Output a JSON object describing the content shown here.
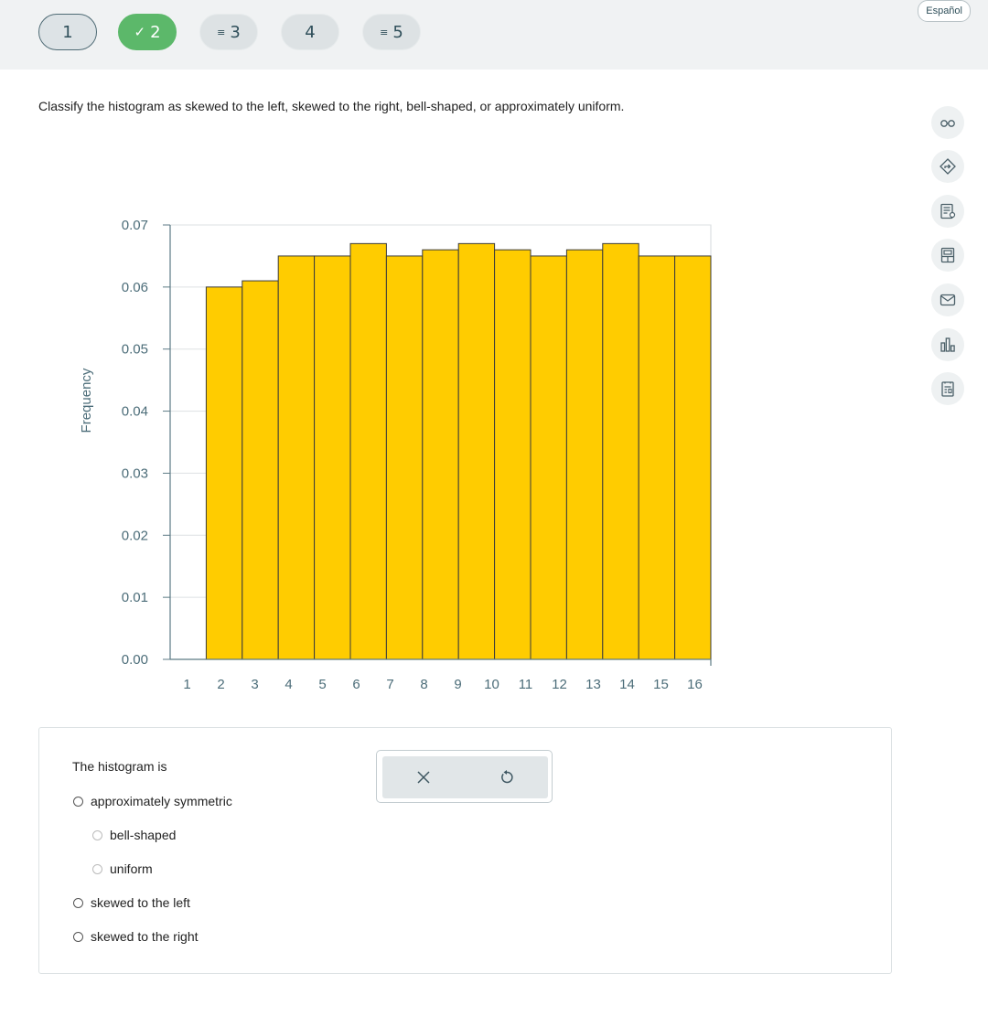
{
  "nav": {
    "tabs": [
      {
        "number": "1",
        "state": "current"
      },
      {
        "number": "2",
        "state": "done"
      },
      {
        "number": "3",
        "state": "note"
      },
      {
        "number": "4",
        "state": "plain"
      },
      {
        "number": "5",
        "state": "note"
      }
    ],
    "language_label": "Español"
  },
  "question": {
    "prompt": "Classify the histogram as skewed to the left, skewed to the right, bell-shaped, or approximately uniform."
  },
  "chart_data": {
    "type": "bar",
    "ylabel": "Frequency",
    "xlabel": "",
    "bin_edges": [
      2,
      3,
      4,
      5,
      6,
      7,
      8,
      9,
      10,
      11,
      12,
      13,
      14,
      15
    ],
    "bin_width": 1,
    "values": [
      0.06,
      0.061,
      0.065,
      0.065,
      0.067,
      0.065,
      0.066,
      0.067,
      0.066,
      0.065,
      0.066,
      0.067,
      0.065,
      0.065
    ],
    "xlim": [
      1,
      16
    ],
    "ylim": [
      0,
      0.07
    ],
    "x_ticks": [
      "1",
      "2",
      "3",
      "4",
      "5",
      "6",
      "7",
      "8",
      "9",
      "10",
      "11",
      "12",
      "13",
      "14",
      "15",
      "16"
    ],
    "y_ticks": [
      "0.00",
      "0.01",
      "0.02",
      "0.03",
      "0.04",
      "0.05",
      "0.06",
      "0.07"
    ],
    "bar_color": "#ffcc00",
    "grid": true
  },
  "answer": {
    "title": "The histogram is",
    "options": [
      {
        "label": "approximately symmetric",
        "level": 0
      },
      {
        "label": "bell-shaped",
        "level": 1
      },
      {
        "label": "uniform",
        "level": 1
      },
      {
        "label": "skewed to the left",
        "level": 0
      },
      {
        "label": "skewed to the right",
        "level": 0
      }
    ]
  },
  "tools": {
    "clear": "x-icon",
    "reset": "undo-icon"
  },
  "sidebar": [
    "glasses-icon",
    "navigate-icon",
    "notes-icon",
    "calculator-icon",
    "mail-icon",
    "chart-icon",
    "worksheet-icon"
  ]
}
